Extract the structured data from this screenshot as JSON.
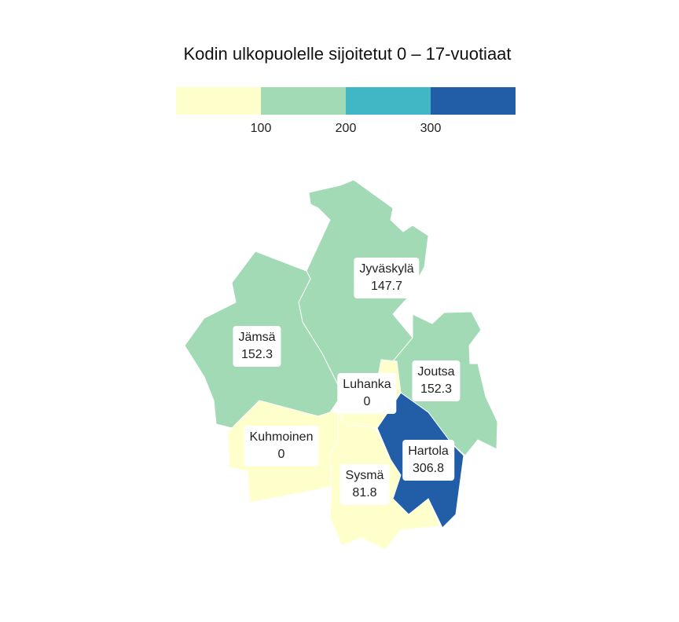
{
  "title": "Kodin ulkopuolelle sijoitetut 0 – 17-vuotiaat",
  "legend": {
    "colors": [
      "#ffffcc",
      "#a1dab4",
      "#41b6c4",
      "#225ea8"
    ],
    "ticks": [
      "100",
      "200",
      "300"
    ]
  },
  "regions": [
    {
      "name": "Jyväskylä",
      "value": "147.7",
      "color": "#a1dab4"
    },
    {
      "name": "Jämsä",
      "value": "152.3",
      "color": "#a1dab4"
    },
    {
      "name": "Joutsa",
      "value": "152.3",
      "color": "#a1dab4"
    },
    {
      "name": "Luhanka",
      "value": "0",
      "color": "#ffffcc"
    },
    {
      "name": "Kuhmoinen",
      "value": "0",
      "color": "#ffffcc"
    },
    {
      "name": "Hartola",
      "value": "306.8",
      "color": "#225ea8"
    },
    {
      "name": "Sysmä",
      "value": "81.8",
      "color": "#ffffcc"
    }
  ]
}
